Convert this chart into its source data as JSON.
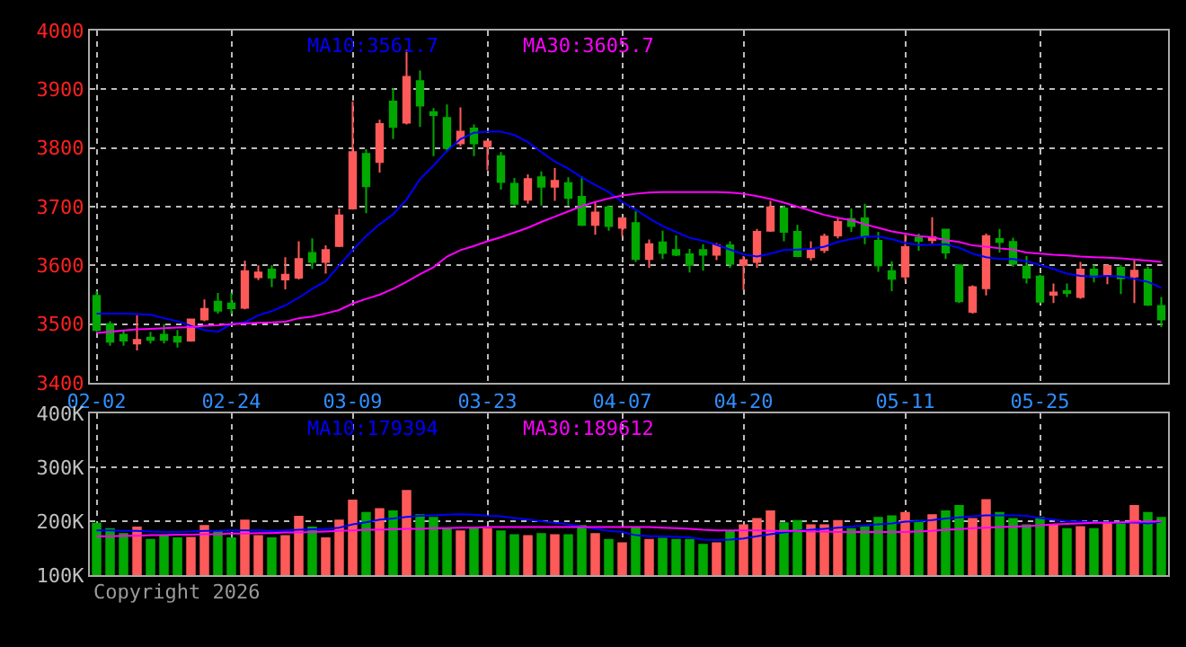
{
  "chart_data": [
    {
      "type": "candlestick",
      "categories": [
        "02-02",
        null,
        null,
        null,
        null,
        null,
        null,
        null,
        null,
        null,
        "02-24",
        null,
        null,
        null,
        null,
        null,
        null,
        null,
        null,
        "03-09",
        null,
        null,
        null,
        null,
        null,
        null,
        null,
        null,
        null,
        "03-23",
        null,
        null,
        null,
        null,
        null,
        null,
        null,
        null,
        null,
        "04-07",
        null,
        null,
        null,
        null,
        null,
        null,
        null,
        null,
        "04-20",
        null,
        null,
        null,
        null,
        null,
        null,
        null,
        null,
        null,
        null,
        null,
        "05-11",
        null,
        null,
        null,
        null,
        null,
        null,
        null,
        null,
        null,
        "05-25",
        null,
        null,
        null,
        null,
        null,
        null,
        null,
        null,
        null
      ],
      "ohlc": [
        [
          3548,
          3556,
          3487,
          3490
        ],
        [
          3500,
          3505,
          3463,
          3470
        ],
        [
          3482,
          3490,
          3463,
          3472
        ],
        [
          3467,
          3515,
          3455,
          3473
        ],
        [
          3477,
          3487,
          3467,
          3473
        ],
        [
          3482,
          3500,
          3467,
          3473
        ],
        [
          3478,
          3490,
          3460,
          3470
        ],
        [
          3472,
          3508,
          3470,
          3508
        ],
        [
          3508,
          3542,
          3505,
          3526
        ],
        [
          3538,
          3553,
          3518,
          3523
        ],
        [
          3535,
          3553,
          3518,
          3527
        ],
        [
          3528,
          3608,
          3525,
          3590
        ],
        [
          3580,
          3600,
          3575,
          3588
        ],
        [
          3593,
          3600,
          3563,
          3579
        ],
        [
          3576,
          3614,
          3559,
          3584
        ],
        [
          3579,
          3641,
          3576,
          3611
        ],
        [
          3621,
          3646,
          3594,
          3606
        ],
        [
          3606,
          3634,
          3586,
          3626
        ],
        [
          3633,
          3697,
          3631,
          3685
        ],
        [
          3697,
          3879,
          3695,
          3793
        ],
        [
          3790,
          3798,
          3689,
          3735
        ],
        [
          3776,
          3848,
          3758,
          3841
        ],
        [
          3879,
          3902,
          3815,
          3836
        ],
        [
          3843,
          3967,
          3840,
          3921
        ],
        [
          3914,
          3932,
          3836,
          3872
        ],
        [
          3861,
          3868,
          3786,
          3856
        ],
        [
          3851,
          3874,
          3793,
          3800
        ],
        [
          3808,
          3869,
          3803,
          3828
        ],
        [
          3833,
          3840,
          3786,
          3808
        ],
        [
          3803,
          3811,
          3762,
          3811
        ],
        [
          3786,
          3793,
          3729,
          3742
        ],
        [
          3739,
          3749,
          3702,
          3705
        ],
        [
          3712,
          3755,
          3705,
          3747
        ],
        [
          3750,
          3760,
          3702,
          3734
        ],
        [
          3734,
          3766,
          3710,
          3744
        ],
        [
          3740,
          3750,
          3702,
          3715
        ],
        [
          3717,
          3752,
          3667,
          3669
        ],
        [
          3669,
          3707,
          3652,
          3690
        ],
        [
          3699,
          3702,
          3659,
          3667
        ],
        [
          3664,
          3682,
          3649,
          3680
        ],
        [
          3672,
          3692,
          3606,
          3611
        ],
        [
          3611,
          3644,
          3596,
          3636
        ],
        [
          3639,
          3659,
          3611,
          3621
        ],
        [
          3626,
          3651,
          3616,
          3618
        ],
        [
          3619,
          3628,
          3588,
          3601
        ],
        [
          3626,
          3636,
          3591,
          3618
        ],
        [
          3618,
          3638,
          3609,
          3634
        ],
        [
          3634,
          3641,
          3596,
          3603
        ],
        [
          3601,
          3616,
          3558,
          3609
        ],
        [
          3606,
          3662,
          3596,
          3657
        ],
        [
          3659,
          3710,
          3657,
          3699
        ],
        [
          3697,
          3702,
          3641,
          3657
        ],
        [
          3657,
          3669,
          3614,
          3616
        ],
        [
          3614,
          3641,
          3608,
          3626
        ],
        [
          3626,
          3654,
          3621,
          3649
        ],
        [
          3651,
          3682,
          3646,
          3674
        ],
        [
          3679,
          3697,
          3657,
          3667
        ],
        [
          3680,
          3705,
          3636,
          3649
        ],
        [
          3642,
          3657,
          3589,
          3600
        ],
        [
          3590,
          3607,
          3556,
          3577
        ],
        [
          3581,
          3652,
          3574,
          3631
        ],
        [
          3647,
          3654,
          3625,
          3642
        ],
        [
          3643,
          3682,
          3637,
          3648
        ],
        [
          3661,
          3661,
          3611,
          3622
        ],
        [
          3600,
          3602,
          3536,
          3539
        ],
        [
          3521,
          3566,
          3518,
          3563
        ],
        [
          3561,
          3654,
          3549,
          3650
        ],
        [
          3645,
          3662,
          3622,
          3640
        ],
        [
          3640,
          3647,
          3598,
          3603
        ],
        [
          3598,
          3616,
          3569,
          3579
        ],
        [
          3581,
          3584,
          3536,
          3538
        ],
        [
          3550,
          3569,
          3536,
          3554
        ],
        [
          3556,
          3569,
          3546,
          3553
        ],
        [
          3546,
          3606,
          3543,
          3593
        ],
        [
          3593,
          3601,
          3571,
          3581
        ],
        [
          3584,
          3601,
          3568,
          3599
        ],
        [
          3596,
          3601,
          3551,
          3578
        ],
        [
          3581,
          3609,
          3536,
          3591
        ],
        [
          3593,
          3598,
          3531,
          3533
        ],
        [
          3531,
          3546,
          3495,
          3508
        ]
      ],
      "colors": [
        "#00a800",
        "#00a800",
        "#00a800",
        "#ff5a5a",
        "#00a800",
        "#00a800",
        "#00a800",
        "#ff5a5a",
        "#ff5a5a",
        "#00a800",
        "#00a800",
        "#ff5a5a",
        "#ff5a5a",
        "#00a800",
        "#ff5a5a",
        "#ff5a5a",
        "#00a800",
        "#ff5a5a",
        "#ff5a5a",
        "#ff5a5a",
        "#00a800",
        "#ff5a5a",
        "#00a800",
        "#ff5a5a",
        "#00a800",
        "#00a800",
        "#00a800",
        "#ff5a5a",
        "#00a800",
        "#ff5a5a",
        "#00a800",
        "#00a800",
        "#ff5a5a",
        "#00a800",
        "#ff5a5a",
        "#00a800",
        "#00a800",
        "#ff5a5a",
        "#00a800",
        "#ff5a5a",
        "#00a800",
        "#ff5a5a",
        "#00a800",
        "#00a800",
        "#00a800",
        "#00a800",
        "#ff5a5a",
        "#00a800",
        "#ff5a5a",
        "#ff5a5a",
        "#ff5a5a",
        "#00a800",
        "#00a800",
        "#ff5a5a",
        "#ff5a5a",
        "#ff5a5a",
        "#00a800",
        "#00a800",
        "#00a800",
        "#00a800",
        "#ff5a5a",
        "#00a800",
        "#ff5a5a",
        "#00a800",
        "#00a800",
        "#ff5a5a",
        "#ff5a5a",
        "#00a800",
        "#00a800",
        "#00a800",
        "#00a800",
        "#ff5a5a",
        "#00a800",
        "#ff5a5a",
        "#00a800",
        "#ff5a5a",
        "#00a800",
        "#ff5a5a",
        "#00a800",
        "#00a800"
      ],
      "series": [
        {
          "type": "line",
          "name": "MA10:3561.7",
          "color": "#0000ff",
          "values": [
            3518,
            3518,
            3518,
            3517,
            3516,
            3510,
            3505,
            3497,
            3490,
            3487,
            3500,
            3503,
            3515,
            3522,
            3532,
            3545,
            3560,
            3573,
            3600,
            3626,
            3650,
            3670,
            3687,
            3712,
            3747,
            3770,
            3795,
            3815,
            3826,
            3828,
            3828,
            3822,
            3810,
            3793,
            3777,
            3765,
            3750,
            3737,
            3725,
            3708,
            3695,
            3680,
            3667,
            3657,
            3647,
            3642,
            3635,
            3627,
            3619,
            3615,
            3620,
            3626,
            3627,
            3628,
            3632,
            3640,
            3645,
            3649,
            3649,
            3645,
            3638,
            3635,
            3635,
            3636,
            3630,
            3620,
            3614,
            3611,
            3611,
            3607,
            3601,
            3594,
            3586,
            3582,
            3581,
            3582,
            3581,
            3577,
            3572,
            3562
          ]
        },
        {
          "type": "line",
          "name": "MA30:3605.7",
          "color": "#ff00ff",
          "values": [
            3485,
            3487,
            3489,
            3491,
            3492,
            3493,
            3494,
            3495,
            3497,
            3498,
            3500,
            3501,
            3502,
            3503,
            3504,
            3510,
            3513,
            3518,
            3524,
            3535,
            3543,
            3550,
            3560,
            3572,
            3585,
            3597,
            3615,
            3626,
            3633,
            3641,
            3648,
            3656,
            3664,
            3674,
            3683,
            3692,
            3701,
            3708,
            3714,
            3719,
            3722,
            3724,
            3725,
            3725,
            3725,
            3725,
            3725,
            3724,
            3722,
            3718,
            3713,
            3707,
            3700,
            3693,
            3686,
            3681,
            3677,
            3670,
            3664,
            3658,
            3654,
            3650,
            3648,
            3643,
            3640,
            3634,
            3632,
            3629,
            3627,
            3622,
            3620,
            3618,
            3617,
            3615,
            3614,
            3613,
            3612,
            3610,
            3608,
            3606
          ]
        }
      ],
      "ylim": [
        3400,
        4000
      ],
      "yticks": [
        3400,
        3500,
        3600,
        3700,
        3800,
        3900,
        4000
      ],
      "grid": true
    },
    {
      "type": "bar",
      "categories": [
        null,
        null,
        null,
        null,
        null,
        null,
        null,
        null,
        null,
        null,
        null,
        null,
        null,
        null,
        null,
        null,
        null,
        null,
        null,
        null,
        null,
        null,
        null,
        null,
        null,
        null,
        null,
        null,
        null,
        null,
        null,
        null,
        null,
        null,
        null,
        null,
        null,
        null,
        null,
        null,
        null,
        null,
        null,
        null,
        null,
        null,
        null,
        null,
        null,
        null,
        null,
        null,
        null,
        null,
        null,
        null,
        null,
        null,
        null,
        null,
        null,
        null,
        null,
        null,
        null,
        null,
        null,
        null,
        null,
        null,
        null,
        null,
        null,
        null,
        null,
        null,
        null,
        null,
        null,
        null
      ],
      "series": [
        {
          "type": "bar",
          "colors": [
            "#00a800",
            "#00a800",
            "#00a800",
            "#ff5a5a",
            "#00a800",
            "#00a800",
            "#00a800",
            "#ff5a5a",
            "#ff5a5a",
            "#00a800",
            "#00a800",
            "#ff5a5a",
            "#ff5a5a",
            "#00a800",
            "#ff5a5a",
            "#ff5a5a",
            "#00a800",
            "#ff5a5a",
            "#ff5a5a",
            "#ff5a5a",
            "#00a800",
            "#ff5a5a",
            "#00a800",
            "#ff5a5a",
            "#00a800",
            "#00a800",
            "#00a800",
            "#ff5a5a",
            "#00a800",
            "#ff5a5a",
            "#00a800",
            "#00a800",
            "#ff5a5a",
            "#00a800",
            "#ff5a5a",
            "#00a800",
            "#00a800",
            "#ff5a5a",
            "#00a800",
            "#ff5a5a",
            "#00a800",
            "#ff5a5a",
            "#00a800",
            "#00a800",
            "#00a800",
            "#00a800",
            "#ff5a5a",
            "#00a800",
            "#ff5a5a",
            "#ff5a5a",
            "#ff5a5a",
            "#00a800",
            "#00a800",
            "#ff5a5a",
            "#ff5a5a",
            "#ff5a5a",
            "#00a800",
            "#00a800",
            "#00a800",
            "#00a800",
            "#ff5a5a",
            "#00a800",
            "#ff5a5a",
            "#00a800",
            "#00a800",
            "#ff5a5a",
            "#ff5a5a",
            "#00a800",
            "#00a800",
            "#00a800",
            "#00a800",
            "#ff5a5a",
            "#00a800",
            "#ff5a5a",
            "#00a800",
            "#ff5a5a",
            "#00a800",
            "#ff5a5a",
            "#00a800",
            "#00a800"
          ],
          "values": [
            197000,
            187000,
            178000,
            190000,
            167000,
            174000,
            170000,
            171000,
            193000,
            183000,
            170000,
            203000,
            174000,
            170000,
            174000,
            210000,
            190000,
            170000,
            203000,
            240000,
            217000,
            224000,
            220000,
            258000,
            213000,
            208000,
            187000,
            183000,
            187000,
            187000,
            183000,
            176000,
            174000,
            178000,
            176000,
            176000,
            193000,
            178000,
            167000,
            161000,
            189000,
            167000,
            169000,
            167000,
            167000,
            158000,
            161000,
            183000,
            194000,
            206000,
            220000,
            198000,
            202000,
            194000,
            194000,
            202000,
            187000,
            191000,
            208000,
            211000,
            217000,
            202000,
            213000,
            220000,
            230000,
            206000,
            241000,
            217000,
            206000,
            194000,
            208000,
            194000,
            187000,
            191000,
            187000,
            197000,
            197000,
            230000,
            217000,
            208000
          ]
        },
        {
          "type": "line",
          "name": "MA10:179394",
          "color": "#0000ff",
          "values": [
            183000,
            183000,
            182000,
            182000,
            181000,
            180000,
            180000,
            181000,
            182000,
            182000,
            183000,
            183000,
            183000,
            182000,
            183000,
            184000,
            185000,
            186000,
            188000,
            194000,
            198000,
            203000,
            205000,
            208000,
            210000,
            211000,
            212000,
            213000,
            212000,
            210000,
            209000,
            206000,
            203000,
            200000,
            197000,
            194000,
            190000,
            186000,
            182000,
            180000,
            174000,
            172000,
            172000,
            171000,
            170000,
            166000,
            165000,
            166000,
            168000,
            172000,
            176000,
            179000,
            182000,
            184000,
            186000,
            188000,
            190000,
            192000,
            194000,
            196000,
            199000,
            200000,
            202000,
            205000,
            207000,
            209000,
            211000,
            211000,
            211000,
            210000,
            206000,
            203000,
            200000,
            199000,
            198000,
            198000,
            197000,
            198000,
            196000,
            199000
          ]
        },
        {
          "type": "line",
          "name": "MA30:189612",
          "color": "#ff00ff",
          "values": [
            172000,
            172000,
            173000,
            173000,
            174000,
            174000,
            175000,
            175000,
            176000,
            176000,
            177000,
            177000,
            178000,
            178000,
            179000,
            179000,
            180000,
            181000,
            182000,
            183000,
            184000,
            184000,
            185000,
            186000,
            186000,
            187000,
            187000,
            188000,
            188000,
            189000,
            189000,
            189000,
            189000,
            189000,
            189000,
            189000,
            189000,
            189000,
            189000,
            189000,
            189000,
            189000,
            188000,
            187000,
            186000,
            184000,
            183000,
            183000,
            183000,
            183000,
            182000,
            182000,
            182000,
            181000,
            181000,
            180000,
            180000,
            180000,
            180000,
            180000,
            180000,
            181000,
            182000,
            184000,
            185000,
            187000,
            188000,
            189000,
            190000,
            191000,
            192000,
            194000,
            195000,
            196000,
            197000,
            197000,
            198000,
            199000,
            199000,
            200000
          ]
        }
      ],
      "ylim": [
        100000,
        400000
      ],
      "yticks": [
        {
          "value": 100000,
          "label": "100K"
        },
        {
          "value": 200000,
          "label": "200K"
        },
        {
          "value": 300000,
          "label": "300K"
        },
        {
          "value": 400000,
          "label": "400K"
        }
      ],
      "grid": true,
      "tick_labels": "y",
      "annotations": [
        "Copyright 2026"
      ]
    }
  ]
}
